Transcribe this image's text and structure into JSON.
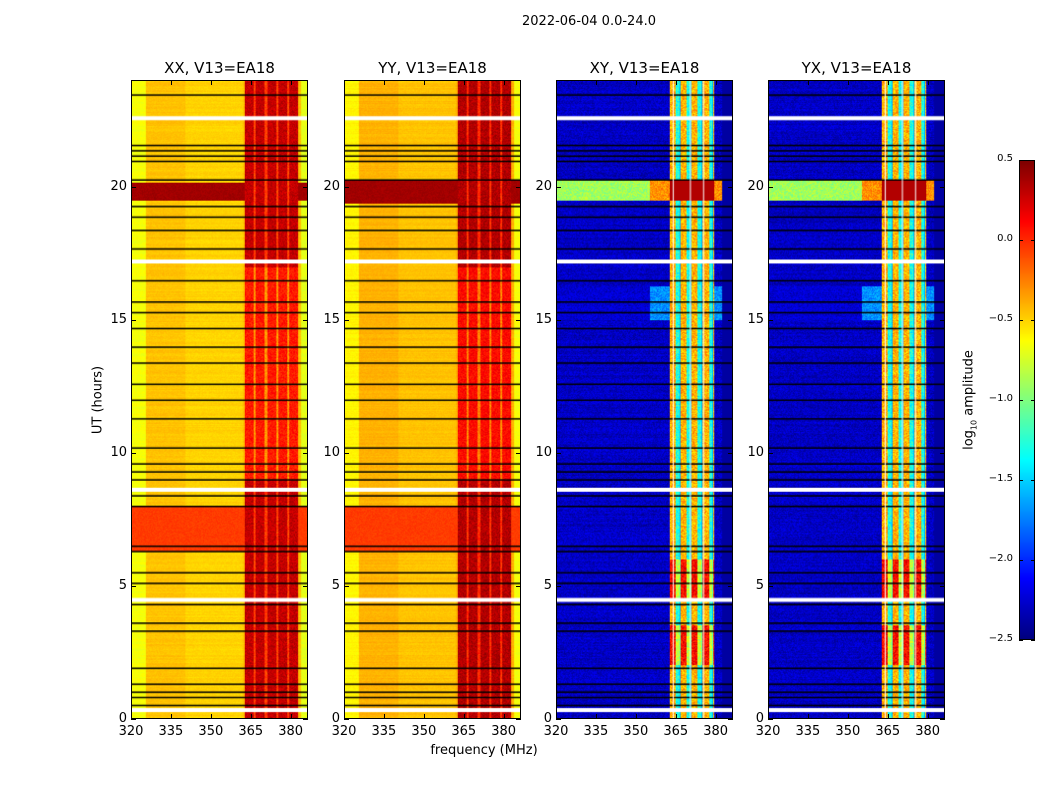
{
  "chart_data": {
    "type": "heatmap",
    "title": "2022-06-04 0.0-24.0",
    "xlabel": "frequency (MHz)",
    "ylabel": "UT (hours)",
    "xlim": [
      320,
      386.5
    ],
    "ylim": [
      0,
      24
    ],
    "xticks": [
      "320",
      "335",
      "350",
      "365",
      "380"
    ],
    "xtick_values": [
      320,
      335,
      350,
      365,
      380
    ],
    "yticks": [
      "0",
      "5",
      "10",
      "15",
      "20"
    ],
    "ytick_values": [
      0,
      5,
      10,
      15,
      20
    ],
    "colormap": "jet",
    "colorbar": {
      "label": "log10 amplitude",
      "label_main": "log",
      "label_sub": "10",
      "label_rest": " amplitude",
      "range": [
        -2.5,
        0.5
      ],
      "ticks": [
        "0.5",
        "0.0",
        "−0.5",
        "−1.0",
        "−1.5",
        "−2.0",
        "−2.5"
      ],
      "tick_values": [
        0.5,
        0.0,
        -0.5,
        -1.0,
        -1.5,
        -2.0,
        -2.5
      ]
    },
    "flagged_rows_hours": [
      0.5,
      0.8,
      1.0,
      1.3,
      1.9,
      3.3,
      3.6,
      4.3,
      5.1,
      5.5,
      6.3,
      6.5,
      8.0,
      8.4,
      9.0,
      9.3,
      9.6,
      10.2,
      11.3,
      12.0,
      12.6,
      13.4,
      14.0,
      14.7,
      15.3,
      15.7,
      16.5,
      17.7,
      18.4,
      18.9,
      19.3,
      20.3,
      21.0,
      21.2,
      21.4,
      21.6,
      23.5
    ],
    "gap_rows_hours": [
      0.3,
      4.45,
      8.6,
      17.2,
      22.6
    ],
    "rfi_band_MHz": [
      362.5,
      383
    ],
    "panels": [
      {
        "title": "XX, V13=EA18",
        "base": -0.45,
        "band": 0.3,
        "band_end": 383,
        "bright_hours": [
          [
            6.3,
            8.0,
            -0.05
          ],
          [
            19.5,
            20.2,
            0.4
          ]
        ],
        "cross": false
      },
      {
        "title": "YY, V13=EA18",
        "base": -0.4,
        "band": 0.35,
        "band_end": 383,
        "bright_hours": [
          [
            6.3,
            8.0,
            -0.05
          ],
          [
            19.4,
            20.3,
            0.4
          ]
        ],
        "cross": false
      },
      {
        "title": "XY, V13=EA18",
        "base": -2.3,
        "band": -1.0,
        "band_end": 379.5,
        "bright_hours": [
          [
            19.5,
            20.3,
            -0.3
          ],
          [
            15.0,
            16.3,
            -1.7
          ]
        ],
        "cross": true
      },
      {
        "title": "YX, V13=EA18",
        "base": -2.3,
        "band": -1.0,
        "band_end": 379.5,
        "bright_hours": [
          [
            19.5,
            20.3,
            -0.3
          ],
          [
            15.0,
            16.3,
            -1.7
          ]
        ],
        "cross": true
      }
    ]
  }
}
